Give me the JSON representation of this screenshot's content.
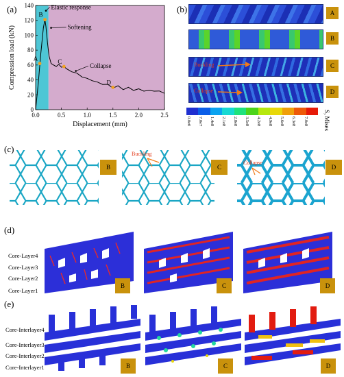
{
  "panels": {
    "a": "(a)",
    "b": "(b)",
    "c": "(c)",
    "d": "(d)",
    "e": "(e)"
  },
  "chart_data": {
    "type": "line",
    "xlabel": "Displacement (mm)",
    "ylabel": "Compression load (kN)",
    "xlim": [
      0,
      2.5
    ],
    "ylim": [
      0,
      140
    ],
    "xticks": [
      "0.0",
      "0.5",
      "1.0",
      "1.5",
      "2.0",
      "2.5"
    ],
    "yticks": [
      "0",
      "20",
      "40",
      "60",
      "80",
      "100",
      "120",
      "140"
    ],
    "regions": [
      {
        "name": "Elastic response",
        "x_start": 0.0,
        "x_end": 0.25,
        "color": "#3bc0d0"
      },
      {
        "name": "Softening / Collapse",
        "x_start": 0.25,
        "x_end": 2.5,
        "color": "#cfa2c8"
      }
    ],
    "annotations": [
      {
        "text": "Elastic response"
      },
      {
        "text": "Softening"
      },
      {
        "text": "Collapse"
      }
    ],
    "points": [
      {
        "label": "A",
        "x": 0.08,
        "y": 62
      },
      {
        "label": "B",
        "x": 0.18,
        "y": 121
      },
      {
        "label": "C",
        "x": 0.55,
        "y": 58
      },
      {
        "label": "D",
        "x": 1.5,
        "y": 30
      }
    ],
    "x": [
      0,
      0.05,
      0.1,
      0.15,
      0.18,
      0.2,
      0.23,
      0.26,
      0.3,
      0.35,
      0.4,
      0.45,
      0.5,
      0.55,
      0.6,
      0.7,
      0.8,
      0.9,
      1.0,
      1.1,
      1.2,
      1.3,
      1.4,
      1.5,
      1.6,
      1.7,
      1.8,
      1.9,
      2.0,
      2.1,
      2.2,
      2.3,
      2.4,
      2.5
    ],
    "y": [
      0,
      35,
      75,
      110,
      121,
      112,
      90,
      72,
      62,
      60,
      58,
      61,
      57,
      58,
      55,
      52,
      48,
      45,
      41,
      40,
      36,
      35,
      33,
      30,
      31,
      28,
      29,
      27,
      27,
      26,
      25,
      26,
      24,
      23
    ]
  },
  "fig_b": {
    "labels": [
      "A",
      "B",
      "C",
      "D"
    ],
    "annotations": [
      {
        "text": "Buckling"
      },
      {
        "text": "Collapse"
      }
    ],
    "colorbar_ticks": [
      "0.0e0",
      "7.0e7",
      "1.4e8",
      "2.1e8",
      "2.8e8",
      "3.5e8",
      "4.2e8",
      "4.9e8",
      "5.6e8",
      "6.3e8",
      "7.0e8"
    ],
    "colorbar_title": "S, Mises",
    "colors": [
      "#1f2fd0",
      "#0b5ee8",
      "#0aa3f0",
      "#17d9d3",
      "#1fe27d",
      "#4cd41b",
      "#b6e80e",
      "#e8d80a",
      "#f0a00a",
      "#ee5a08",
      "#e61a08"
    ]
  },
  "fig_c": {
    "labels": [
      "B",
      "C",
      "D"
    ],
    "annotations": [
      {
        "text": "Buckling"
      },
      {
        "text": "Collapse"
      }
    ]
  },
  "fig_d": {
    "labels": [
      "B",
      "C",
      "D"
    ],
    "layers": [
      "Core-Layer4",
      "Core-Layer3",
      "Core-Layer2",
      "Core-Layer1"
    ]
  },
  "fig_e": {
    "labels": [
      "B",
      "C",
      "D"
    ],
    "layers": [
      "Core-Interlayer4",
      "Core-Interlayer3",
      "Core-Interlayer2",
      "Core-Interlayer1"
    ]
  }
}
